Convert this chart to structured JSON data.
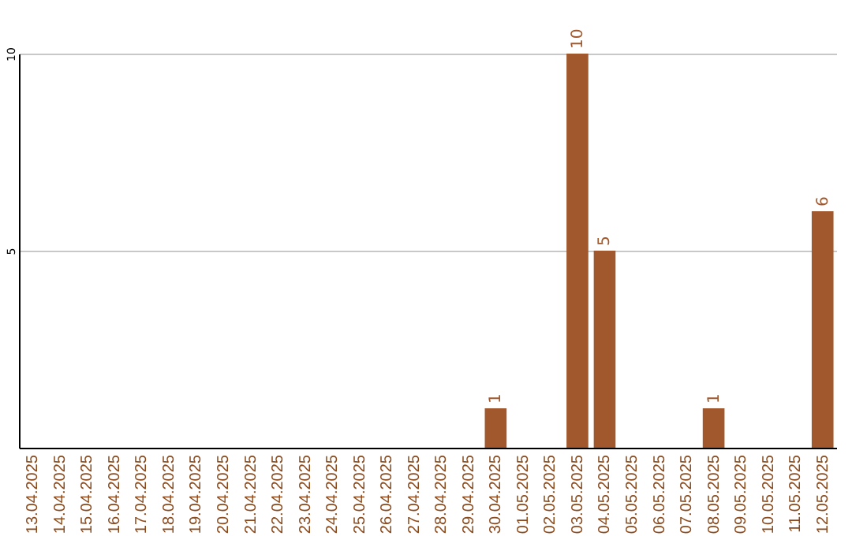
{
  "chart_data": {
    "type": "bar",
    "categories": [
      "13.04.2025",
      "14.04.2025",
      "15.04.2025",
      "16.04.2025",
      "17.04.2025",
      "18.04.2025",
      "19.04.2025",
      "20.04.2025",
      "21.04.2025",
      "22.04.2025",
      "23.04.2025",
      "24.04.2025",
      "25.04.2025",
      "26.04.2025",
      "27.04.2025",
      "28.04.2025",
      "29.04.2025",
      "30.04.2025",
      "01.05.2025",
      "02.05.2025",
      "03.05.2025",
      "04.05.2025",
      "05.05.2025",
      "06.05.2025",
      "07.05.2025",
      "08.05.2025",
      "09.05.2025",
      "10.05.2025",
      "11.05.2025",
      "12.05.2025"
    ],
    "values": [
      0,
      0,
      0,
      0,
      0,
      0,
      0,
      0,
      0,
      0,
      0,
      0,
      0,
      0,
      0,
      0,
      0,
      1,
      0,
      0,
      10,
      5,
      0,
      0,
      0,
      1,
      0,
      0,
      0,
      6
    ],
    "value_labels": [
      null,
      null,
      null,
      null,
      null,
      null,
      null,
      null,
      null,
      null,
      null,
      null,
      null,
      null,
      null,
      null,
      null,
      "1",
      null,
      null,
      "10",
      "5",
      null,
      null,
      null,
      "1",
      null,
      null,
      null,
      "6"
    ],
    "color": "#a0582c",
    "ylim": [
      0,
      10
    ],
    "yticks": [
      5,
      10
    ],
    "grid": "y"
  }
}
